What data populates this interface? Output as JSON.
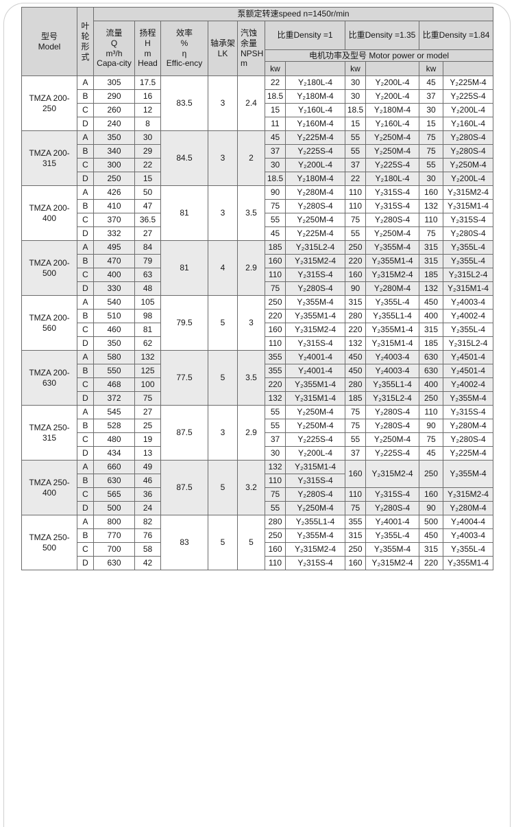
{
  "page": {
    "speed_title": "泵额定转速speed n=1450r/min"
  },
  "table": {
    "headers": {
      "model": "型号\nModel",
      "impeller": "叶\n轮\n形\n式",
      "flow": "流量\nQ\nm³/h\nCapa-city",
      "head": "扬程\nH\nm\nHead",
      "efficiency": "效率\n%\nη\nEffic-ency",
      "bearing": "轴承架\nLK",
      "npsh": "汽蚀\n余量\nNPSH\nm",
      "density1": "比重Density =1",
      "density135": "比重Density =1.35",
      "density184": "比重Density =1.84",
      "motor_power": "电机功率及型号  Motor power or model",
      "kw": "kw"
    },
    "colors": {
      "header_bg": "#d7d7d7",
      "shaded_row_bg": "#eaeaea",
      "border": "#6b6b6b"
    },
    "groups": [
      {
        "model": "TMZA 200-250",
        "shaded": false,
        "eff": "83.5",
        "lk": "3",
        "npsh": "2.4",
        "rows": [
          {
            "form": "A",
            "q": "305",
            "h": "17.5",
            "p": [
              [
                "22",
                "Y₂180L-4"
              ],
              [
                "30",
                "Y₂200L-4"
              ],
              [
                "45",
                "Y₂225M-4"
              ]
            ]
          },
          {
            "form": "B",
            "q": "290",
            "h": "16",
            "p": [
              [
                "18.5",
                "Y₂180M-4"
              ],
              [
                "30",
                "Y₂200L-4"
              ],
              [
                "37",
                "Y₂225S-4"
              ]
            ]
          },
          {
            "form": "C",
            "q": "260",
            "h": "12",
            "p": [
              [
                "15",
                "Y₂160L-4"
              ],
              [
                "18.5",
                "Y₂180M-4"
              ],
              [
                "30",
                "Y₂200L-4"
              ]
            ]
          },
          {
            "form": "D",
            "q": "240",
            "h": "8",
            "p": [
              [
                "11",
                "Y₂160M-4"
              ],
              [
                "15",
                "Y₂160L-4"
              ],
              [
                "15",
                "Y₂160L-4"
              ]
            ]
          }
        ]
      },
      {
        "model": "TMZA 200-315",
        "shaded": true,
        "eff": "84.5",
        "lk": "3",
        "npsh": "2",
        "rows": [
          {
            "form": "A",
            "q": "350",
            "h": "30",
            "p": [
              [
                "45",
                "Y₂225M-4"
              ],
              [
                "55",
                "Y₂250M-4"
              ],
              [
                "75",
                "Y₂280S-4"
              ]
            ]
          },
          {
            "form": "B",
            "q": "340",
            "h": "29",
            "p": [
              [
                "37",
                "Y₂225S-4"
              ],
              [
                "55",
                "Y₂250M-4"
              ],
              [
                "75",
                "Y₂280S-4"
              ]
            ]
          },
          {
            "form": "C",
            "q": "300",
            "h": "22",
            "p": [
              [
                "30",
                "Y₂200L-4"
              ],
              [
                "37",
                "Y₂225S-4"
              ],
              [
                "55",
                "Y₂250M-4"
              ]
            ]
          },
          {
            "form": "D",
            "q": "250",
            "h": "15",
            "p": [
              [
                "18.5",
                "Y₂180M-4"
              ],
              [
                "22",
                "Y₂180L-4"
              ],
              [
                "30",
                "Y₂200L-4"
              ]
            ]
          }
        ]
      },
      {
        "model": "TMZA 200-400",
        "shaded": false,
        "eff": "81",
        "lk": "3",
        "npsh": "3.5",
        "rows": [
          {
            "form": "A",
            "q": "426",
            "h": "50",
            "p": [
              [
                "90",
                "Y₂280M-4"
              ],
              [
                "110",
                "Y₂315S-4"
              ],
              [
                "160",
                "Y₂315M2-4"
              ]
            ]
          },
          {
            "form": "B",
            "q": "410",
            "h": "47",
            "p": [
              [
                "75",
                "Y₂280S-4"
              ],
              [
                "110",
                "Y₂315S-4"
              ],
              [
                "132",
                "Y₂315M1-4"
              ]
            ]
          },
          {
            "form": "C",
            "q": "370",
            "h": "36.5",
            "p": [
              [
                "55",
                "Y₂250M-4"
              ],
              [
                "75",
                "Y₂280S-4"
              ],
              [
                "110",
                "Y₂315S-4"
              ]
            ]
          },
          {
            "form": "D",
            "q": "332",
            "h": "27",
            "p": [
              [
                "45",
                "Y₂225M-4"
              ],
              [
                "55",
                "Y₂250M-4"
              ],
              [
                "75",
                "Y₂280S-4"
              ]
            ]
          }
        ]
      },
      {
        "model": "TMZA 200-500",
        "shaded": true,
        "eff": "81",
        "lk": "4",
        "npsh": "2.9",
        "rows": [
          {
            "form": "A",
            "q": "495",
            "h": "84",
            "p": [
              [
                "185",
                "Y₂315L2-4"
              ],
              [
                "250",
                "Y₂355M-4"
              ],
              [
                "315",
                "Y₂355L-4"
              ]
            ]
          },
          {
            "form": "B",
            "q": "470",
            "h": "79",
            "p": [
              [
                "160",
                "Y₂315M2-4"
              ],
              [
                "220",
                "Y₂355M1-4"
              ],
              [
                "315",
                "Y₂355L-4"
              ]
            ]
          },
          {
            "form": "C",
            "q": "400",
            "h": "63",
            "p": [
              [
                "110",
                "Y₂315S-4"
              ],
              [
                "160",
                "Y₂315M2-4"
              ],
              [
                "185",
                "Y₂315L2-4"
              ]
            ]
          },
          {
            "form": "D",
            "q": "330",
            "h": "48",
            "p": [
              [
                "75",
                "Y₂280S-4"
              ],
              [
                "90",
                "Y₂280M-4"
              ],
              [
                "132",
                "Y₂315M1-4"
              ]
            ]
          }
        ]
      },
      {
        "model": "TMZA 200-560",
        "shaded": false,
        "eff": "79.5",
        "lk": "5",
        "npsh": "3",
        "rows": [
          {
            "form": "A",
            "q": "540",
            "h": "105",
            "p": [
              [
                "250",
                "Y₂355M-4"
              ],
              [
                "315",
                "Y₂355L-4"
              ],
              [
                "450",
                "Y₂4003-4"
              ]
            ]
          },
          {
            "form": "B",
            "q": "510",
            "h": "98",
            "p": [
              [
                "220",
                "Y₂355M1-4"
              ],
              [
                "280",
                "Y₂355L1-4"
              ],
              [
                "400",
                "Y₂4002-4"
              ]
            ]
          },
          {
            "form": "C",
            "q": "460",
            "h": "81",
            "p": [
              [
                "160",
                "Y₂315M2-4"
              ],
              [
                "220",
                "Y₂355M1-4"
              ],
              [
                "315",
                "Y₂355L-4"
              ]
            ]
          },
          {
            "form": "D",
            "q": "350",
            "h": "62",
            "p": [
              [
                "110",
                "Y₂315S-4"
              ],
              [
                "132",
                "Y₂315M1-4"
              ],
              [
                "185",
                "Y₂315L2-4"
              ]
            ]
          }
        ]
      },
      {
        "model": "TMZA 200-630",
        "shaded": true,
        "eff": "77.5",
        "lk": "5",
        "npsh": "3.5",
        "rows": [
          {
            "form": "A",
            "q": "580",
            "h": "132",
            "p": [
              [
                "355",
                "Y₂4001-4"
              ],
              [
                "450",
                "Y₂4003-4"
              ],
              [
                "630",
                "Y₂4501-4"
              ]
            ]
          },
          {
            "form": "B",
            "q": "550",
            "h": "125",
            "p": [
              [
                "355",
                "Y₂4001-4"
              ],
              [
                "450",
                "Y₂4003-4"
              ],
              [
                "630",
                "Y₂4501-4"
              ]
            ]
          },
          {
            "form": "C",
            "q": "468",
            "h": "100",
            "p": [
              [
                "220",
                "Y₂355M1-4"
              ],
              [
                "280",
                "Y₂355L1-4"
              ],
              [
                "400",
                "Y₂4002-4"
              ]
            ]
          },
          {
            "form": "D",
            "q": "372",
            "h": "75",
            "p": [
              [
                "132",
                "Y₂315M1-4"
              ],
              [
                "185",
                "Y₂315L2-4"
              ],
              [
                "250",
                "Y₂355M-4"
              ]
            ]
          }
        ]
      },
      {
        "model": "TMZA 250-315",
        "shaded": false,
        "eff": "87.5",
        "lk": "3",
        "npsh": "2.9",
        "rows": [
          {
            "form": "A",
            "q": "545",
            "h": "27",
            "p": [
              [
                "55",
                "Y₂250M-4"
              ],
              [
                "75",
                "Y₂280S-4"
              ],
              [
                "110",
                "Y₂315S-4"
              ]
            ]
          },
          {
            "form": "B",
            "q": "528",
            "h": "25",
            "p": [
              [
                "55",
                "Y₂250M-4"
              ],
              [
                "75",
                "Y₂280S-4"
              ],
              [
                "90",
                "Y₂280M-4"
              ]
            ]
          },
          {
            "form": "C",
            "q": "480",
            "h": "19",
            "p": [
              [
                "37",
                "Y₂225S-4"
              ],
              [
                "55",
                "Y₂250M-4"
              ],
              [
                "75",
                "Y₂280S-4"
              ]
            ]
          },
          {
            "form": "D",
            "q": "434",
            "h": "13",
            "p": [
              [
                "30",
                "Y₂200L-4"
              ],
              [
                "37",
                "Y₂225S-4"
              ],
              [
                "45",
                "Y₂225M-4"
              ]
            ]
          }
        ]
      },
      {
        "model": "TMZA 250-400",
        "shaded": true,
        "eff": "87.5",
        "lk": "5",
        "npsh": "3.2",
        "rows": [
          {
            "form": "A",
            "q": "660",
            "h": "49",
            "p": [
              [
                "132",
                "Y₂315M1-4"
              ],
              [
                "160",
                "Y₂315M2-4",
                2
              ],
              [
                "250",
                "Y₂355M-4",
                2
              ]
            ]
          },
          {
            "form": "B",
            "q": "630",
            "h": "46",
            "p": [
              [
                "110",
                "Y₂315S-4"
              ],
              null,
              null
            ]
          },
          {
            "form": "C",
            "q": "565",
            "h": "36",
            "p": [
              [
                "75",
                "Y₂280S-4"
              ],
              [
                "110",
                "Y₂315S-4"
              ],
              [
                "160",
                "Y₂315M2-4"
              ]
            ]
          },
          {
            "form": "D",
            "q": "500",
            "h": "24",
            "p": [
              [
                "55",
                "Y₂250M-4"
              ],
              [
                "75",
                "Y₂280S-4"
              ],
              [
                "90",
                "Y₂280M-4"
              ]
            ]
          }
        ]
      },
      {
        "model": "TMZA 250-500",
        "shaded": false,
        "eff": "83",
        "lk": "5",
        "npsh": "5",
        "rows": [
          {
            "form": "A",
            "q": "800",
            "h": "82",
            "p": [
              [
                "280",
                "Y₂355L1-4"
              ],
              [
                "355",
                "Y₂4001-4"
              ],
              [
                "500",
                "Y₂4004-4"
              ]
            ]
          },
          {
            "form": "B",
            "q": "770",
            "h": "76",
            "p": [
              [
                "250",
                "Y₂355M-4"
              ],
              [
                "315",
                "Y₂355L-4"
              ],
              [
                "450",
                "Y₂4003-4"
              ]
            ]
          },
          {
            "form": "C",
            "q": "700",
            "h": "58",
            "p": [
              [
                "160",
                "Y₂315M2-4"
              ],
              [
                "250",
                "Y₂355M-4"
              ],
              [
                "315",
                "Y₂355L-4"
              ]
            ]
          },
          {
            "form": "D",
            "q": "630",
            "h": "42",
            "p": [
              [
                "110",
                "Y₂315S-4"
              ],
              [
                "160",
                "Y₂315M2-4"
              ],
              [
                "220",
                "Y₂355M1-4"
              ]
            ]
          }
        ]
      }
    ]
  }
}
